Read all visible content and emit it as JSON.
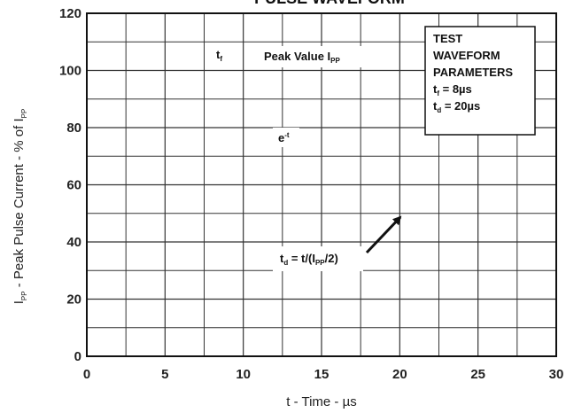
{
  "chart_data": {
    "type": "line",
    "title": "PULSE WAVEFORM",
    "xlabel": "t - Time - µs",
    "ylabel_parts": [
      "I",
      "PP",
      " - Peak Pulse Current - % of I",
      "PP"
    ],
    "xlim": [
      0,
      30
    ],
    "ylim": [
      0,
      120
    ],
    "x_ticks": [
      0,
      5,
      10,
      15,
      20,
      25,
      30
    ],
    "y_ticks": [
      0,
      20,
      40,
      60,
      80,
      100,
      120
    ],
    "grid": true,
    "series": [],
    "annotations": {
      "tf_label": [
        "t",
        "f"
      ],
      "peak_label": [
        "Peak Value I",
        "PP"
      ],
      "exp_label": [
        "e",
        "-t"
      ],
      "td_label": [
        "t",
        "d",
        " = t/(I",
        "PP",
        "/2)"
      ]
    },
    "legend_box": {
      "lines": [
        [
          "TEST"
        ],
        [
          "WAVEFORM"
        ],
        [
          "PARAMETERS"
        ],
        [
          "t",
          "f",
          " = 8µs"
        ],
        [
          "t",
          "d",
          " = 20µs"
        ]
      ]
    }
  }
}
